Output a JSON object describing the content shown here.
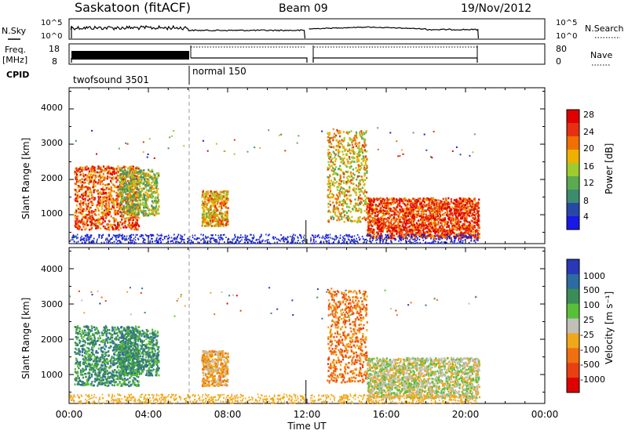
{
  "header": {
    "station": "Saskatoon (fitACF)",
    "beam": "Beam 09",
    "date": "19/Nov/2012"
  },
  "status": {
    "nsky_label": "N.Sky",
    "nsky_ticks": [
      "10^5",
      "10^0"
    ],
    "nsearch_label": "N.Search",
    "freq_label": "Freq.",
    "freq_unit": "[MHz]",
    "freq_ticks": [
      "18",
      "8"
    ],
    "nave_label": "Nave",
    "nave_ticks": [
      "80",
      "0"
    ],
    "cpid_label": "CPID",
    "cpid_segments": [
      {
        "name": "twofsound 3501",
        "start": "00:00",
        "end": "06:00"
      },
      {
        "name": "normal 150",
        "start": "06:00",
        "end": "20:40"
      }
    ]
  },
  "power_panel": {
    "ylabel": "Slant Range [km]",
    "yticks": [
      "1000",
      "2000",
      "3000",
      "4000"
    ],
    "colorbar_label": "Power [dB]",
    "colorbar_ticks": [
      "4",
      "8",
      "12",
      "16",
      "20",
      "24",
      "28"
    ],
    "colors": [
      "#1818e8",
      "#2848a8",
      "#3c8c70",
      "#5caa50",
      "#9ccc30",
      "#f0b000",
      "#f07000",
      "#e83010",
      "#e00000"
    ]
  },
  "velocity_panel": {
    "ylabel": "Slant Range [km]",
    "yticks": [
      "1000",
      "2000",
      "3000",
      "4000"
    ],
    "colorbar_label": "Velocity [m s⁻¹]",
    "colorbar_ticks": [
      "1000",
      "500",
      "100",
      "25",
      "-25",
      "-100",
      "-500",
      "-1000"
    ],
    "colors": [
      "#2838b8",
      "#2c6ca0",
      "#3c8c58",
      "#58c038",
      "#c0c0b8",
      "#f0a818",
      "#f07010",
      "#e84010",
      "#e00000"
    ]
  },
  "xaxis": {
    "label": "Time UT",
    "ticks": [
      "00:00",
      "04:00",
      "08:00",
      "12:00",
      "16:00",
      "20:00",
      "00:00"
    ]
  },
  "chart_data": {
    "type": "heatmap",
    "title": "Saskatoon (fitACF)  Beam 09  19/Nov/2012",
    "xlabel": "Time UT",
    "xlim": [
      "00:00",
      "24:00"
    ],
    "panels": [
      {
        "name": "Power",
        "ylabel": "Slant Range [km]",
        "ylim": [
          180,
          4600
        ],
        "clim_db": [
          0,
          30
        ],
        "data_coverage_ut": [
          [
            "00:00",
            "11:55"
          ],
          [
            "12:05",
            "20:40"
          ]
        ],
        "scatter_regions": [
          {
            "time": [
              "00:15",
              "03:30"
            ],
            "range_km": [
              600,
              2400
            ],
            "typical_db": 24
          },
          {
            "time": [
              "02:30",
              "04:30"
            ],
            "range_km": [
              1000,
              2300
            ],
            "typical_db": 14
          },
          {
            "time": [
              "06:40",
              "08:00"
            ],
            "range_km": [
              700,
              1700
            ],
            "typical_db": 20
          },
          {
            "time": [
              "13:00",
              "15:00"
            ],
            "range_km": [
              800,
              3400
            ],
            "typical_db": 18
          },
          {
            "time": [
              "15:00",
              "20:40"
            ],
            "range_km": [
              350,
              1500
            ],
            "typical_db": 26
          }
        ]
      },
      {
        "name": "Velocity",
        "ylabel": "Slant Range [km]",
        "ylim": [
          180,
          4600
        ],
        "clim_ms": [
          -1000,
          1000
        ],
        "scatter_regions": [
          {
            "time": [
              "00:15",
              "03:30"
            ],
            "range_km": [
              700,
              2400
            ],
            "typical_ms": 150
          },
          {
            "time": [
              "02:30",
              "04:30"
            ],
            "range_km": [
              1000,
              2300
            ],
            "typical_ms": 200
          },
          {
            "time": [
              "06:40",
              "08:00"
            ],
            "range_km": [
              700,
              1700
            ],
            "typical_ms": -50
          },
          {
            "time": [
              "13:00",
              "15:00"
            ],
            "range_km": [
              800,
              3400
            ],
            "typical_ms": -300
          },
          {
            "time": [
              "15:00",
              "20:40"
            ],
            "range_km": [
              350,
              1500
            ],
            "typical_ms": 0
          }
        ]
      }
    ]
  }
}
